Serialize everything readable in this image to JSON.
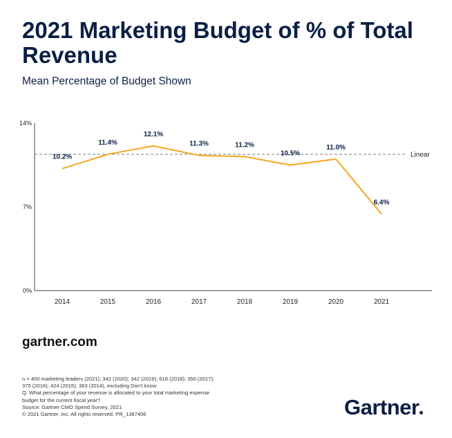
{
  "title": "2021 Marketing Budget of % of Total Revenue",
  "subtitle": "Mean Percentage of Budget Shown",
  "site": "gartner.com",
  "notes": [
    "n = 400 marketing leaders (2021); 342 (2020); 342 (2019); 618 (2018); 350 (2017);",
    "375 (2016); 424 (2015); 363 (2014), excluding Don't know",
    "Q. What percentage of your revenue is allocated to your total marketing expense",
    "budget for the current fiscal year?",
    "Source: Gartner CMO Spend Survey, 2021",
    "© 2021 Gartner, Inc. All rights reserved. PR_1387406"
  ],
  "logo": "Gartner",
  "colors": {
    "line": "#f5a623",
    "text_dark": "#0a1f44",
    "axis": "#444444",
    "trend": "#777777"
  },
  "chart_data": {
    "type": "line",
    "title": "2021 Marketing Budget of % of Total Revenue",
    "subtitle": "Mean Percentage of Budget Shown",
    "categories": [
      "2014",
      "2015",
      "2016",
      "2017",
      "2018",
      "2019",
      "2020",
      "2021"
    ],
    "values": [
      10.2,
      11.4,
      12.1,
      11.3,
      11.2,
      10.5,
      11.0,
      6.4
    ],
    "labels": [
      "10.2%",
      "11.4%",
      "12.1%",
      "11.3%",
      "11.2%",
      "10.5%",
      "11.0%",
      "6.4%"
    ],
    "ylim": [
      0,
      14
    ],
    "yticks": [
      0,
      7,
      14
    ],
    "ytick_labels": [
      "0%",
      "7%",
      "14%"
    ],
    "trendline": {
      "label": "Linear",
      "value": 11.4,
      "style": "dashed"
    },
    "grid": false,
    "legend": "none"
  }
}
